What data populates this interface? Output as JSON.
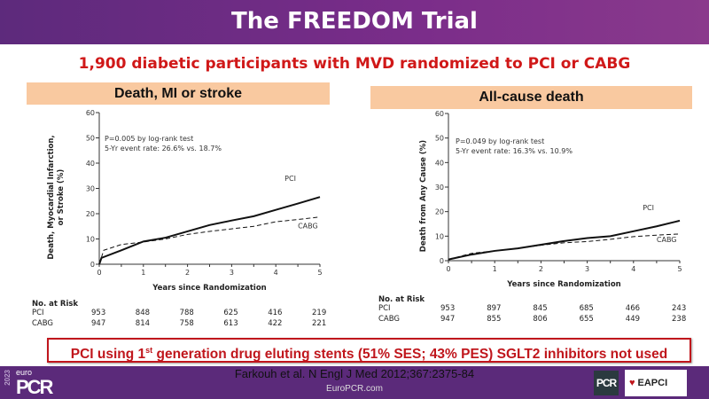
{
  "header": {
    "title": "The FREEDOM Trial"
  },
  "subtitle": "1,900 diabetic participants with MVD randomized to PCI or CABG",
  "chart_data": [
    {
      "type": "line",
      "title": "Death, MI or stroke",
      "ylabel": "Death, Myocardial Infarction, or Stroke (%)",
      "xlabel": "Years since Randomization",
      "xlim": [
        0,
        5
      ],
      "ylim": [
        0,
        60
      ],
      "xticks": [
        "0",
        "1",
        "2",
        "3",
        "4",
        "5"
      ],
      "yticks": [
        "0",
        "10",
        "20",
        "30",
        "40",
        "50",
        "60"
      ],
      "annotation": [
        "P=0.005 by log-rank test",
        "5-Yr event rate: 26.6% vs. 18.7%"
      ],
      "series": [
        {
          "name": "PCI",
          "style": "solid",
          "x": [
            0,
            0.05,
            0.5,
            1,
            1.5,
            2,
            2.5,
            3,
            3.5,
            4,
            4.5,
            5
          ],
          "y": [
            0,
            2.5,
            5.5,
            9,
            10.5,
            13,
            15.5,
            17.3,
            19,
            21.5,
            24,
            26.6
          ]
        },
        {
          "name": "CABG",
          "style": "dashed",
          "x": [
            0,
            0.1,
            0.5,
            1,
            1.5,
            2,
            2.5,
            3,
            3.5,
            4,
            4.5,
            5
          ],
          "y": [
            0,
            5.5,
            7.8,
            8.8,
            10,
            11.8,
            13,
            14,
            15,
            16.8,
            17.7,
            18.7
          ]
        }
      ],
      "risk": {
        "heading": "No. at Risk",
        "rows": [
          {
            "label": "PCI",
            "values": [
              "953",
              "848",
              "788",
              "625",
              "416",
              "219"
            ]
          },
          {
            "label": "CABG",
            "values": [
              "947",
              "814",
              "758",
              "613",
              "422",
              "221"
            ]
          }
        ]
      }
    },
    {
      "type": "line",
      "title": "All-cause death",
      "ylabel": "Death from Any Cause (%)",
      "xlabel": "Years since Randomization",
      "xlim": [
        0,
        5
      ],
      "ylim": [
        0,
        60
      ],
      "xticks": [
        "0",
        "1",
        "2",
        "3",
        "4",
        "5"
      ],
      "yticks": [
        "0",
        "10",
        "20",
        "30",
        "40",
        "50",
        "60"
      ],
      "annotation": [
        "P=0.049 by log-rank test",
        "5-Yr event rate: 16.3% vs. 10.9%"
      ],
      "series": [
        {
          "name": "PCI",
          "style": "solid",
          "x": [
            0,
            0.5,
            1,
            1.5,
            2,
            2.5,
            3,
            3.5,
            4,
            4.5,
            5
          ],
          "y": [
            0.5,
            2.5,
            4,
            5,
            6.5,
            8,
            9.2,
            10,
            12,
            14,
            16.3
          ]
        },
        {
          "name": "CABG",
          "style": "dashed",
          "x": [
            0,
            0.5,
            1,
            1.5,
            2,
            2.5,
            3,
            3.5,
            4,
            4.5,
            5
          ],
          "y": [
            0.5,
            3,
            4,
            5,
            6.3,
            7.3,
            7.8,
            8.7,
            9.8,
            10.4,
            10.9
          ]
        }
      ],
      "risk": {
        "heading": "No. at Risk",
        "rows": [
          {
            "label": "PCI",
            "values": [
              "953",
              "897",
              "845",
              "685",
              "466",
              "243"
            ]
          },
          {
            "label": "CABG",
            "values": [
              "947",
              "855",
              "806",
              "655",
              "449",
              "238"
            ]
          }
        ]
      }
    }
  ],
  "note": {
    "prefix": "PCI using 1",
    "sup": "st",
    "rest": " generation drug eluting stents (51% SES; 43% PES) SGLT2 inhibitors not used"
  },
  "footer": {
    "citation": "Farkouh et al. N Engl J Med 2012;367:2375-84",
    "website": "EuroPCR.com",
    "logo_year": "2023",
    "logo_euro": "euro",
    "logo_pcr": "PCR",
    "pcr_badge": "PCR",
    "eapci": "EAPCI"
  }
}
